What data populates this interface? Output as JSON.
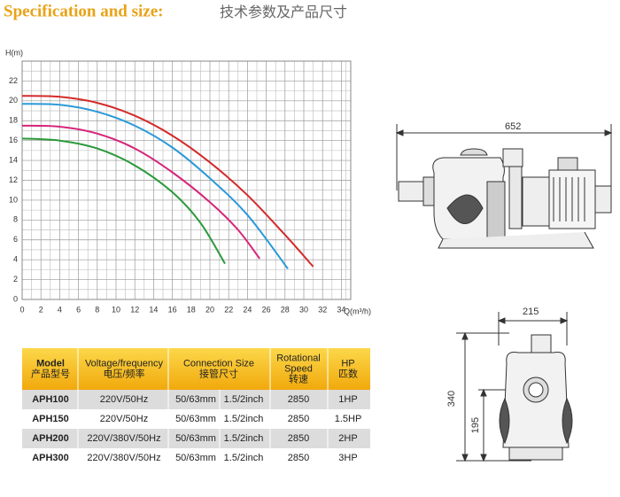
{
  "header": {
    "title_en": "Specification and size:",
    "title_cn": "技术参数及产品尺寸"
  },
  "chart_data": {
    "type": "line",
    "y_label": "H(m)",
    "x_label": "Q(m³/h)",
    "xlim": [
      0,
      35
    ],
    "xticks": [
      0,
      2,
      4,
      6,
      8,
      10,
      12,
      14,
      16,
      18,
      20,
      22,
      24,
      26,
      28,
      30,
      32,
      34
    ],
    "ylim": [
      0,
      24
    ],
    "yticks": [
      0,
      2,
      4,
      6,
      8,
      10,
      12,
      14,
      16,
      18,
      20,
      22
    ],
    "grid": true,
    "series": [
      {
        "color": "#d42a2a",
        "x": [
          0,
          4,
          8,
          12,
          16,
          20,
          24,
          28,
          31
        ],
        "values": [
          20.5,
          20.4,
          19.8,
          18.5,
          16.5,
          13.8,
          10.5,
          6.5,
          3.3
        ]
      },
      {
        "color": "#2a9ad8",
        "x": [
          0,
          4,
          8,
          12,
          16,
          20,
          24,
          28.3
        ],
        "values": [
          19.7,
          19.6,
          18.9,
          17.5,
          15.3,
          12.2,
          8.5,
          3.1
        ]
      },
      {
        "color": "#d6257a",
        "x": [
          0,
          4,
          8,
          12,
          16,
          20,
          23,
          25.3
        ],
        "values": [
          17.5,
          17.4,
          16.7,
          15.2,
          12.8,
          9.8,
          7,
          4.1
        ]
      },
      {
        "color": "#2a9a3a",
        "x": [
          0,
          4,
          8,
          12,
          16,
          19,
          21.6
        ],
        "values": [
          16.2,
          16,
          15.2,
          13.5,
          10.8,
          7.7,
          3.6
        ]
      }
    ]
  },
  "table": {
    "header": [
      [
        "Model",
        "产品型号"
      ],
      [
        "Voltage/frequency",
        "电压/频率"
      ],
      [
        "Connection Size",
        "接管尺寸"
      ],
      [
        "Rotational",
        "Speed",
        "转速"
      ],
      [
        "HP",
        "匹数"
      ]
    ],
    "rows": [
      [
        "APH100",
        "220V/50Hz",
        "50/63mm",
        "1.5/2inch",
        "2850",
        "1HP"
      ],
      [
        "APH150",
        "220V/50Hz",
        "50/63mm",
        "1.5/2inch",
        "2850",
        "1.5HP"
      ],
      [
        "APH200",
        "220V/380V/50Hz",
        "50/63mm",
        "1.5/2inch",
        "2850",
        "2HP"
      ],
      [
        "APH300",
        "220V/380V/50Hz",
        "50/63mm",
        "1.5/2inch",
        "2850",
        "3HP"
      ]
    ]
  },
  "drawings": {
    "side_width": "652",
    "front_width": "215",
    "front_height": "340",
    "front_inlet_height": "195"
  }
}
